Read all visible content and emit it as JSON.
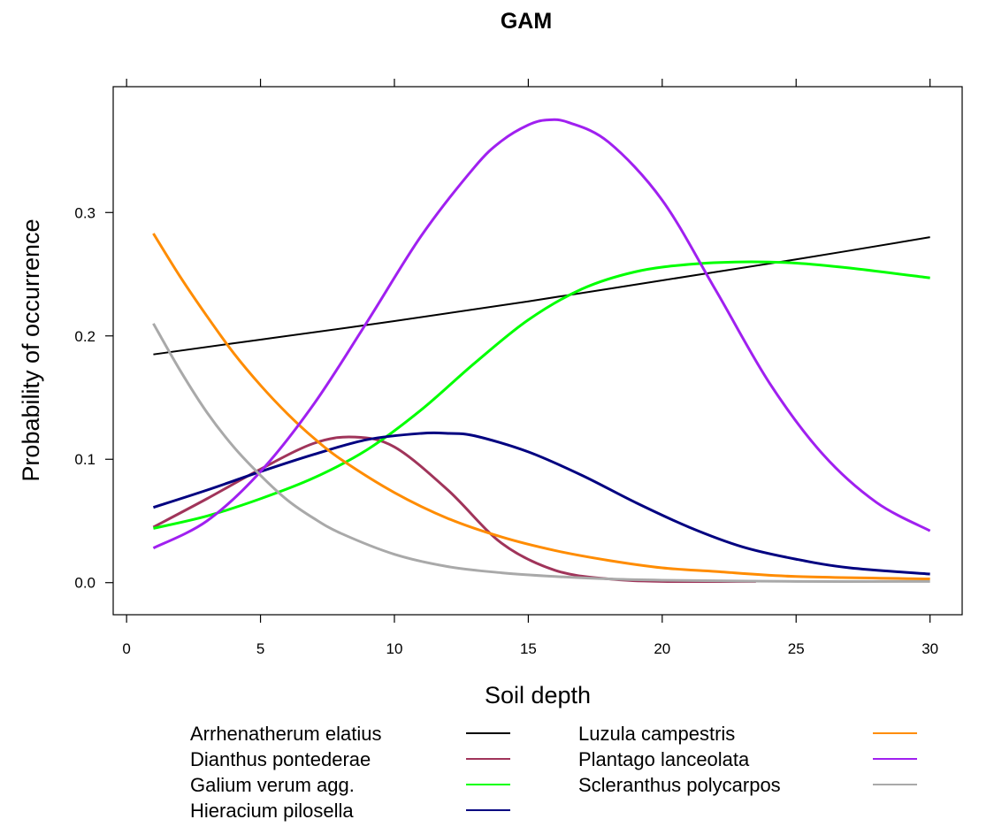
{
  "chart_data": {
    "type": "line",
    "title": "GAM",
    "xlabel": "Soil depth",
    "ylabel": "Probability of occurrence",
    "xlim": [
      -0.5,
      31.2
    ],
    "ylim": [
      -0.026,
      0.402
    ],
    "x_ticks": [
      0,
      5,
      10,
      15,
      20,
      25,
      30
    ],
    "x_tick_labels": [
      "0",
      "5",
      "10",
      "15",
      "20",
      "25",
      "30"
    ],
    "y_ticks": [
      0.0,
      0.1,
      0.2,
      0.3
    ],
    "y_tick_labels": [
      "0.0",
      "0.1",
      "0.2",
      "0.3"
    ],
    "grid": false,
    "legend_position": "bottom",
    "series": [
      {
        "name": "Arrhenatherum elatius",
        "color": "#000000",
        "x": [
          1,
          5,
          10,
          15,
          20,
          25,
          30
        ],
        "y": [
          0.185,
          0.197,
          0.212,
          0.228,
          0.245,
          0.262,
          0.28
        ]
      },
      {
        "name": "Dianthus pontederae",
        "color": "#a0345a",
        "x": [
          1,
          3,
          5,
          7,
          8.5,
          10,
          12,
          14,
          16,
          18,
          20,
          23.5
        ],
        "y": [
          0.045,
          0.068,
          0.092,
          0.113,
          0.118,
          0.11,
          0.075,
          0.032,
          0.01,
          0.003,
          0.001,
          0.001
        ]
      },
      {
        "name": "Galium verum agg.",
        "color": "#00ff00",
        "x": [
          1,
          3,
          5,
          7,
          9,
          11,
          13,
          15,
          17,
          19,
          21,
          23,
          25,
          27,
          30
        ],
        "y": [
          0.044,
          0.054,
          0.068,
          0.085,
          0.108,
          0.14,
          0.178,
          0.213,
          0.238,
          0.252,
          0.258,
          0.26,
          0.259,
          0.255,
          0.247
        ]
      },
      {
        "name": "Hieracium pilosella",
        "color": "#000080",
        "x": [
          1,
          3,
          5,
          7,
          9,
          11,
          12,
          13,
          15,
          17,
          19,
          21,
          23,
          25,
          27,
          30
        ],
        "y": [
          0.061,
          0.075,
          0.09,
          0.104,
          0.116,
          0.121,
          0.121,
          0.119,
          0.106,
          0.087,
          0.065,
          0.045,
          0.029,
          0.019,
          0.012,
          0.007
        ]
      },
      {
        "name": "Luzula campestris",
        "color": "#ff8c00",
        "x": [
          1,
          2,
          3,
          4,
          5,
          6,
          7,
          8,
          10,
          12,
          14,
          16,
          18,
          20,
          22,
          25,
          30
        ],
        "y": [
          0.283,
          0.248,
          0.216,
          0.186,
          0.16,
          0.137,
          0.117,
          0.1,
          0.073,
          0.052,
          0.037,
          0.026,
          0.018,
          0.012,
          0.009,
          0.005,
          0.003
        ]
      },
      {
        "name": "Plantago lanceolata",
        "color": "#a020f0",
        "x": [
          1,
          3,
          5,
          7,
          9,
          11,
          13,
          14,
          15,
          15.7,
          16.5,
          18,
          20,
          22,
          24,
          26,
          28,
          30
        ],
        "y": [
          0.028,
          0.05,
          0.09,
          0.145,
          0.212,
          0.281,
          0.337,
          0.358,
          0.371,
          0.375,
          0.373,
          0.357,
          0.31,
          0.237,
          0.162,
          0.104,
          0.065,
          0.042
        ]
      },
      {
        "name": "Scleranthus polycarpos",
        "color": "#a9a9a9",
        "x": [
          1,
          2,
          3,
          4,
          5,
          6,
          7,
          8,
          10,
          12,
          14,
          16,
          18,
          20,
          25,
          30
        ],
        "y": [
          0.21,
          0.172,
          0.138,
          0.11,
          0.087,
          0.067,
          0.052,
          0.04,
          0.023,
          0.013,
          0.008,
          0.005,
          0.003,
          0.002,
          0.001,
          0.001
        ]
      }
    ]
  }
}
